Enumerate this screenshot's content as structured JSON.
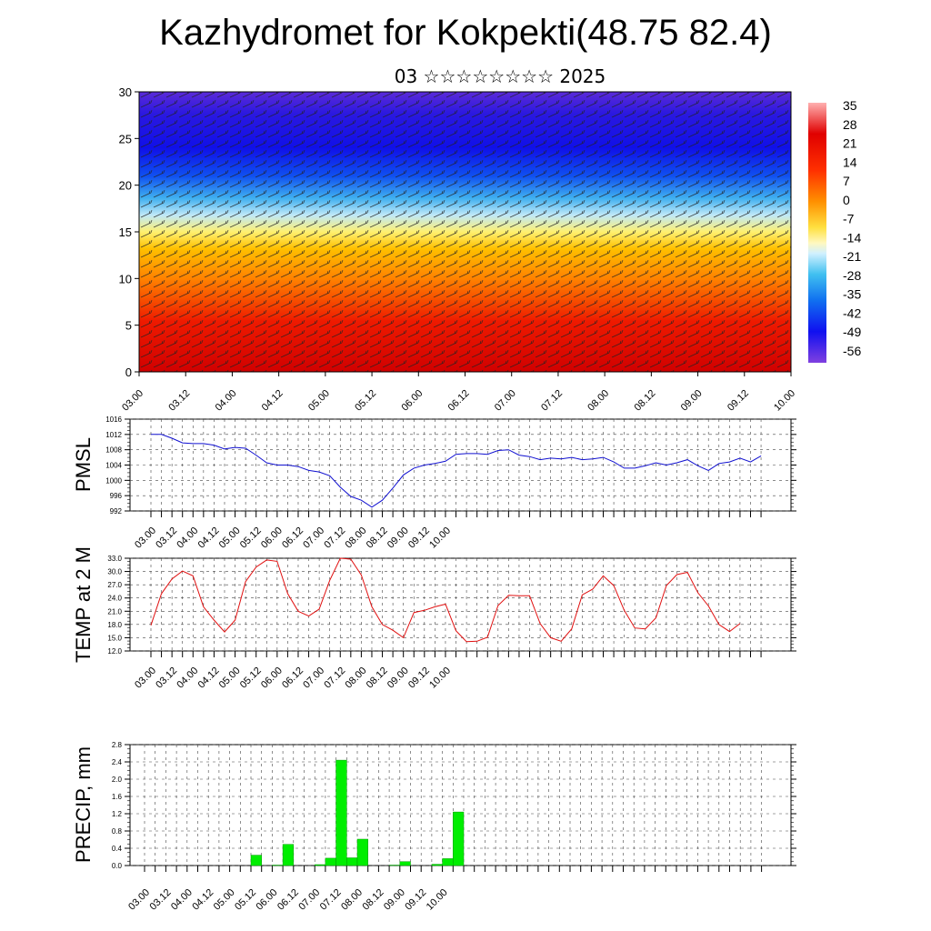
{
  "title": "Kazhydromet for Kokpekti(48.75 82.4)",
  "subtitle": "03 ☆☆☆☆☆☆☆☆ 2025",
  "time_labels": [
    "03.00",
    "03.12",
    "04.00",
    "04.12",
    "05.00",
    "05.12",
    "06.00",
    "06.12",
    "07.00",
    "07.12",
    "08.00",
    "08.12",
    "09.00",
    "09.12",
    "10.00"
  ],
  "chart_data": [
    {
      "type": "heatmap",
      "name": "cross-section",
      "x": [
        "03.00",
        "03.12",
        "04.00",
        "04.12",
        "05.00",
        "05.12",
        "06.00",
        "06.12",
        "07.00",
        "07.12",
        "08.00",
        "08.12",
        "09.00",
        "09.12",
        "10.00"
      ],
      "ylim": [
        0,
        30
      ],
      "yticks": [
        0,
        5,
        10,
        15,
        20,
        25,
        30
      ],
      "temperature_by_level": [
        [
          0,
          28
        ],
        [
          5,
          27
        ],
        [
          10,
          20
        ],
        [
          15,
          -8
        ],
        [
          20,
          -30
        ],
        [
          25,
          -55
        ],
        [
          30,
          -58
        ]
      ],
      "colorbar": {
        "labels": [
          "35",
          "28",
          "21",
          "14",
          "7",
          "0",
          "-7",
          "-14",
          "-21",
          "-28",
          "-35",
          "-42",
          "-49",
          "-56"
        ],
        "range": [
          -63,
          40
        ]
      },
      "overlay": "wind barbs"
    },
    {
      "type": "line",
      "ylabel": "PMSL",
      "color": "#1010d0",
      "ylim": [
        992,
        1016
      ],
      "yticks": [
        "992",
        "996",
        "1000",
        "1004",
        "1008",
        "1012",
        "1016"
      ],
      "x_step_hours": 6,
      "values": [
        1012,
        1012,
        1011,
        1009.8,
        1009.6,
        1009.6,
        1009.2,
        1008.2,
        1008.6,
        1008.4,
        1006.6,
        1004.6,
        1004.0,
        1004.0,
        1003.6,
        1002.6,
        1002.2,
        1001.2,
        998.2,
        995.8,
        994.8,
        993.0,
        994.8,
        998.0,
        1001.4,
        1003.2,
        1004.0,
        1004.4,
        1005.0,
        1006.8,
        1007.0,
        1007.0,
        1006.8,
        1007.8,
        1008.0,
        1006.6,
        1006.2,
        1005.4,
        1005.8,
        1005.6,
        1006.0,
        1005.4,
        1005.6,
        1006.0,
        1004.8,
        1003.2,
        1003.2,
        1003.8,
        1004.6,
        1004.0,
        1004.6,
        1005.4,
        1003.8,
        1002.6,
        1004.4,
        1004.8,
        1005.8,
        1004.8,
        1006.4
      ]
    },
    {
      "type": "line",
      "ylabel": "TEMP at 2 M",
      "color": "#e01010",
      "ylim": [
        12,
        33
      ],
      "yticks": [
        "12.0",
        "15.0",
        "18.0",
        "21.0",
        "24.0",
        "27.0",
        "30.0",
        "33.0"
      ],
      "x_step_hours": 6,
      "values": [
        17.8,
        25.0,
        28.3,
        30.1,
        29.0,
        22.0,
        19.0,
        16.3,
        19.0,
        27.7,
        31.0,
        32.6,
        32.3,
        25.0,
        21.0,
        19.9,
        21.5,
        28.0,
        33.0,
        32.8,
        29.2,
        22.0,
        18.0,
        16.7,
        15.0,
        20.7,
        21.2,
        22.0,
        22.6,
        16.6,
        14.1,
        14.2,
        15.1,
        22.3,
        24.6,
        24.5,
        24.5,
        18.2,
        15.0,
        14.2,
        17.0,
        24.7,
        26.0,
        29.0,
        26.8,
        21.2,
        17.2,
        17.0,
        19.5,
        26.8,
        29.3,
        29.8,
        25.2,
        22.2,
        18.0,
        16.4,
        18.2
      ]
    },
    {
      "type": "bar",
      "ylabel": "PRECIP, mm",
      "color": "#00ee00",
      "ylim": [
        0,
        2.8
      ],
      "yticks": [
        "0.0",
        "0.4",
        "0.8",
        "1.2",
        "1.6",
        "2.0",
        "2.4",
        "2.8"
      ],
      "bar_hours": 6,
      "bars": [
        {
          "start_hours": 60,
          "value": 0.24
        },
        {
          "start_hours": 72,
          "value": 0.01
        },
        {
          "start_hours": 78,
          "value": 0.49
        },
        {
          "start_hours": 96,
          "value": 0.02
        },
        {
          "start_hours": 102,
          "value": 0.17
        },
        {
          "start_hours": 108,
          "value": 2.44
        },
        {
          "start_hours": 114,
          "value": 0.18
        },
        {
          "start_hours": 120,
          "value": 0.61
        },
        {
          "start_hours": 138,
          "value": 0.01
        },
        {
          "start_hours": 144,
          "value": 0.09
        },
        {
          "start_hours": 162,
          "value": 0.03
        },
        {
          "start_hours": 168,
          "value": 0.16
        },
        {
          "start_hours": 174,
          "value": 1.24
        }
      ]
    }
  ]
}
